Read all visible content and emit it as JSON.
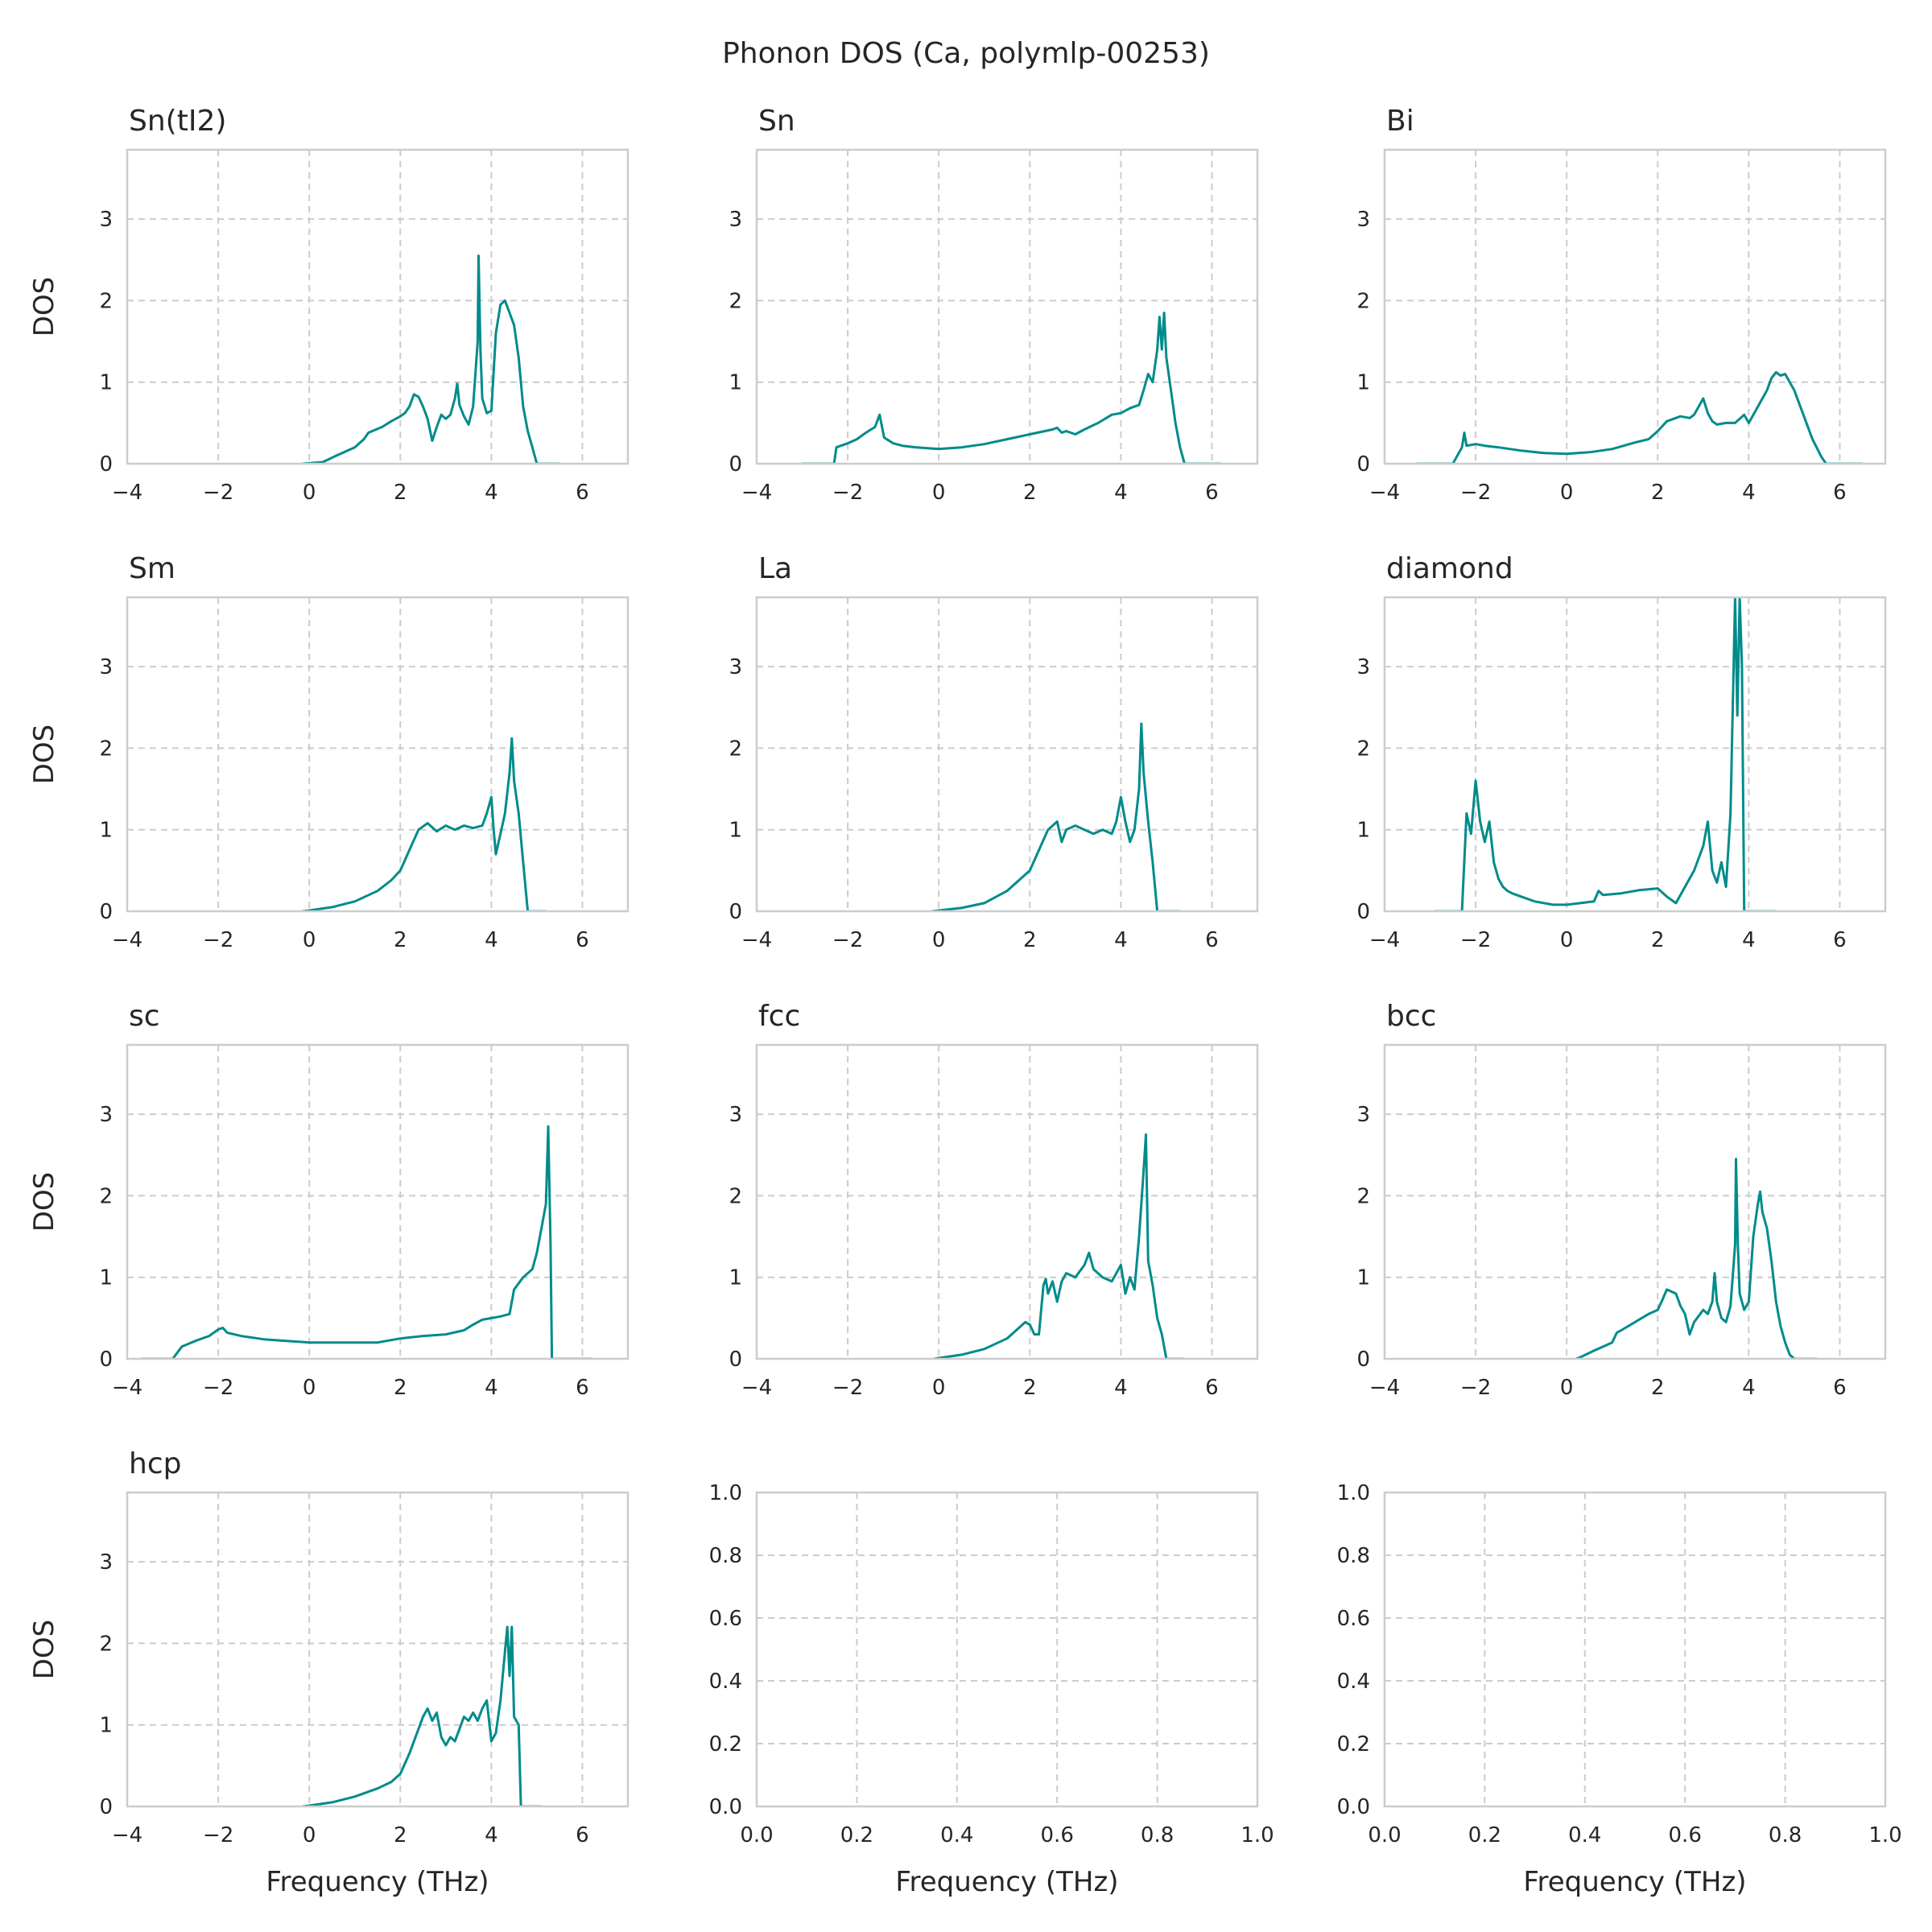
{
  "figure": {
    "title": "Phonon DOS (Ca, polymlp-00253)",
    "line_color": "#008b8b"
  },
  "chart_data": [
    {
      "type": "line",
      "title": "Sn(tI2)",
      "xlabel": "",
      "ylabel": "DOS",
      "xlim": [
        -4,
        7
      ],
      "ylim": [
        0,
        3.85
      ],
      "xticks": [
        "−4",
        "−2",
        "0",
        "2",
        "4",
        "6"
      ],
      "yticks": [
        "0",
        "1",
        "2",
        "3"
      ],
      "x": [
        -0.15,
        0.3,
        0.6,
        1.0,
        1.2,
        1.3,
        1.6,
        1.8,
        2.0,
        2.1,
        2.2,
        2.3,
        2.4,
        2.5,
        2.6,
        2.7,
        2.8,
        2.9,
        3.0,
        3.1,
        3.2,
        3.25,
        3.3,
        3.4,
        3.5,
        3.6,
        3.7,
        3.72,
        3.76,
        3.8,
        3.9,
        4.0,
        4.1,
        4.2,
        4.3,
        4.4,
        4.5,
        4.6,
        4.7,
        4.8,
        4.9,
        5.0,
        5.5
      ],
      "y": [
        0,
        0.02,
        0.1,
        0.2,
        0.3,
        0.38,
        0.45,
        0.52,
        0.58,
        0.62,
        0.7,
        0.85,
        0.82,
        0.7,
        0.55,
        0.28,
        0.45,
        0.6,
        0.55,
        0.6,
        0.8,
        0.98,
        0.72,
        0.58,
        0.48,
        0.7,
        1.5,
        2.55,
        1.4,
        0.8,
        0.62,
        0.65,
        1.6,
        1.95,
        2.0,
        1.85,
        1.7,
        1.3,
        0.7,
        0.4,
        0.2,
        0,
        0
      ]
    },
    {
      "type": "line",
      "title": "Sn",
      "xlabel": "",
      "ylabel": "",
      "xlim": [
        -4,
        7
      ],
      "ylim": [
        0,
        3.85
      ],
      "xticks": [
        "−4",
        "−2",
        "0",
        "2",
        "4",
        "6"
      ],
      "yticks": [
        "0",
        "1",
        "2",
        "3"
      ],
      "x": [
        -3.0,
        -2.3,
        -2.25,
        -2.0,
        -1.8,
        -1.6,
        -1.4,
        -1.3,
        -1.2,
        -1.0,
        -0.8,
        -0.5,
        0,
        0.5,
        1.0,
        1.5,
        2.0,
        2.5,
        2.6,
        2.7,
        2.8,
        3.0,
        3.2,
        3.5,
        3.8,
        4.0,
        4.2,
        4.4,
        4.5,
        4.6,
        4.7,
        4.8,
        4.85,
        4.9,
        4.95,
        5.0,
        5.1,
        5.2,
        5.3,
        5.4,
        6.2
      ],
      "y": [
        0,
        0,
        0.2,
        0.25,
        0.3,
        0.38,
        0.45,
        0.6,
        0.32,
        0.25,
        0.22,
        0.2,
        0.18,
        0.2,
        0.24,
        0.3,
        0.36,
        0.42,
        0.44,
        0.38,
        0.4,
        0.36,
        0.42,
        0.5,
        0.6,
        0.62,
        0.68,
        0.72,
        0.9,
        1.1,
        1.0,
        1.4,
        1.8,
        1.4,
        1.85,
        1.3,
        0.9,
        0.5,
        0.2,
        0,
        0
      ]
    },
    {
      "type": "line",
      "title": "Bi",
      "xlabel": "",
      "ylabel": "",
      "xlim": [
        -4,
        7
      ],
      "ylim": [
        0,
        3.85
      ],
      "xticks": [
        "−4",
        "−2",
        "0",
        "2",
        "4",
        "6"
      ],
      "yticks": [
        "0",
        "1",
        "2",
        "3"
      ],
      "x": [
        -3.3,
        -2.5,
        -2.3,
        -2.25,
        -2.2,
        -2.0,
        -1.8,
        -1.5,
        -1.0,
        -0.5,
        0,
        0.5,
        1.0,
        1.5,
        1.8,
        2.0,
        2.2,
        2.5,
        2.7,
        2.8,
        2.9,
        3.0,
        3.1,
        3.2,
        3.3,
        3.5,
        3.7,
        3.9,
        4.0,
        4.2,
        4.4,
        4.5,
        4.6,
        4.7,
        4.8,
        5.0,
        5.2,
        5.4,
        5.6,
        5.7,
        6.5
      ],
      "y": [
        0,
        0,
        0.2,
        0.38,
        0.22,
        0.24,
        0.22,
        0.2,
        0.16,
        0.13,
        0.12,
        0.14,
        0.18,
        0.26,
        0.3,
        0.4,
        0.52,
        0.58,
        0.56,
        0.6,
        0.7,
        0.8,
        0.62,
        0.52,
        0.48,
        0.5,
        0.5,
        0.6,
        0.5,
        0.7,
        0.9,
        1.05,
        1.12,
        1.08,
        1.1,
        0.9,
        0.6,
        0.3,
        0.08,
        0,
        0
      ]
    },
    {
      "type": "line",
      "title": "Sm",
      "xlabel": "",
      "ylabel": "DOS",
      "xlim": [
        -4,
        7
      ],
      "ylim": [
        0,
        3.85
      ],
      "xticks": [
        "−4",
        "−2",
        "0",
        "2",
        "4",
        "6"
      ],
      "yticks": [
        "0",
        "1",
        "2",
        "3"
      ],
      "x": [
        -0.15,
        0,
        0.5,
        1.0,
        1.5,
        1.8,
        2.0,
        2.2,
        2.4,
        2.6,
        2.8,
        3.0,
        3.2,
        3.4,
        3.6,
        3.8,
        3.9,
        4.0,
        4.05,
        4.1,
        4.2,
        4.3,
        4.4,
        4.45,
        4.5,
        4.6,
        4.7,
        4.8,
        5.2
      ],
      "y": [
        0,
        0.01,
        0.05,
        0.12,
        0.25,
        0.38,
        0.5,
        0.75,
        1.0,
        1.08,
        0.98,
        1.05,
        1.0,
        1.05,
        1.02,
        1.05,
        1.2,
        1.4,
        1.0,
        0.7,
        0.95,
        1.2,
        1.7,
        2.12,
        1.6,
        1.2,
        0.6,
        0,
        0
      ]
    },
    {
      "type": "line",
      "title": "La",
      "xlabel": "",
      "ylabel": "",
      "xlim": [
        -4,
        7
      ],
      "ylim": [
        0,
        3.85
      ],
      "xticks": [
        "−4",
        "−2",
        "0",
        "2",
        "4",
        "6"
      ],
      "yticks": [
        "0",
        "1",
        "2",
        "3"
      ],
      "x": [
        -0.15,
        0,
        0.5,
        1.0,
        1.5,
        2.0,
        2.2,
        2.4,
        2.6,
        2.7,
        2.8,
        3.0,
        3.2,
        3.4,
        3.6,
        3.8,
        3.9,
        4.0,
        4.1,
        4.2,
        4.3,
        4.4,
        4.45,
        4.5,
        4.6,
        4.7,
        4.8,
        5.3
      ],
      "y": [
        0,
        0.01,
        0.04,
        0.1,
        0.25,
        0.5,
        0.75,
        1.0,
        1.1,
        0.85,
        1.0,
        1.05,
        1.0,
        0.95,
        1.0,
        0.95,
        1.1,
        1.4,
        1.1,
        0.85,
        1.0,
        1.5,
        2.3,
        1.7,
        1.1,
        0.6,
        0,
        0
      ]
    },
    {
      "type": "line",
      "title": "diamond",
      "xlabel": "",
      "ylabel": "",
      "xlim": [
        -4,
        7
      ],
      "ylim": [
        0,
        3.85
      ],
      "xticks": [
        "−4",
        "−2",
        "0",
        "2",
        "4",
        "6"
      ],
      "yticks": [
        "0",
        "1",
        "2",
        "3"
      ],
      "x": [
        -2.9,
        -2.3,
        -2.2,
        -2.1,
        -2.0,
        -1.9,
        -1.8,
        -1.7,
        -1.6,
        -1.5,
        -1.4,
        -1.3,
        -1.2,
        -1.0,
        -0.7,
        -0.3,
        0,
        0.3,
        0.6,
        0.7,
        0.8,
        1.2,
        1.6,
        2.0,
        2.2,
        2.4,
        2.6,
        2.8,
        3.0,
        3.1,
        3.2,
        3.3,
        3.4,
        3.5,
        3.6,
        3.7,
        3.75,
        3.8,
        3.85,
        3.9,
        4.6
      ],
      "y": [
        0,
        0,
        1.2,
        0.95,
        1.6,
        1.1,
        0.85,
        1.1,
        0.6,
        0.4,
        0.3,
        0.25,
        0.22,
        0.18,
        0.12,
        0.08,
        0.08,
        0.1,
        0.12,
        0.25,
        0.2,
        0.22,
        0.26,
        0.28,
        0.18,
        0.1,
        0.3,
        0.5,
        0.8,
        1.1,
        0.5,
        0.35,
        0.6,
        0.3,
        1.2,
        3.85,
        2.4,
        3.85,
        3.0,
        0,
        0
      ]
    },
    {
      "type": "line",
      "title": "sc",
      "xlabel": "",
      "ylabel": "DOS",
      "xlim": [
        -4,
        7
      ],
      "ylim": [
        0,
        3.85
      ],
      "xticks": [
        "−4",
        "−2",
        "0",
        "2",
        "4",
        "6"
      ],
      "yticks": [
        "0",
        "1",
        "2",
        "3"
      ],
      "x": [
        -3.7,
        -3.0,
        -2.8,
        -2.5,
        -2.2,
        -2.0,
        -1.9,
        -1.8,
        -1.5,
        -1.0,
        -0.5,
        0,
        0.5,
        1.0,
        1.5,
        2.0,
        2.5,
        3.0,
        3.4,
        3.6,
        3.8,
        4.0,
        4.2,
        4.4,
        4.5,
        4.7,
        4.9,
        5.0,
        5.1,
        5.2,
        5.25,
        5.3,
        5.33,
        6.2
      ],
      "y": [
        0,
        0,
        0.15,
        0.22,
        0.28,
        0.36,
        0.38,
        0.32,
        0.28,
        0.24,
        0.22,
        0.2,
        0.2,
        0.2,
        0.2,
        0.25,
        0.28,
        0.3,
        0.35,
        0.42,
        0.48,
        0.5,
        0.52,
        0.55,
        0.85,
        1.0,
        1.1,
        1.3,
        1.6,
        1.9,
        2.85,
        1.4,
        0,
        0
      ]
    },
    {
      "type": "line",
      "title": "fcc",
      "xlabel": "",
      "ylabel": "",
      "xlim": [
        -4,
        7
      ],
      "ylim": [
        0,
        3.85
      ],
      "xticks": [
        "−4",
        "−2",
        "0",
        "2",
        "4",
        "6"
      ],
      "yticks": [
        "0",
        "1",
        "2",
        "3"
      ],
      "x": [
        -0.1,
        0,
        0.5,
        1.0,
        1.5,
        1.8,
        1.9,
        2.0,
        2.1,
        2.2,
        2.3,
        2.35,
        2.4,
        2.5,
        2.6,
        2.7,
        2.8,
        3.0,
        3.2,
        3.3,
        3.4,
        3.6,
        3.8,
        4.0,
        4.1,
        4.2,
        4.3,
        4.4,
        4.5,
        4.55,
        4.6,
        4.7,
        4.8,
        4.9,
        5.0,
        5.4
      ],
      "y": [
        0,
        0.01,
        0.05,
        0.12,
        0.25,
        0.4,
        0.45,
        0.42,
        0.3,
        0.3,
        0.9,
        0.98,
        0.8,
        0.95,
        0.7,
        0.95,
        1.05,
        1.0,
        1.15,
        1.3,
        1.1,
        1.0,
        0.95,
        1.15,
        0.8,
        1.0,
        0.85,
        1.5,
        2.3,
        2.75,
        1.2,
        0.9,
        0.5,
        0.3,
        0,
        0
      ]
    },
    {
      "type": "line",
      "title": "bcc",
      "xlabel": "",
      "ylabel": "",
      "xlim": [
        -4,
        7
      ],
      "ylim": [
        0,
        3.85
      ],
      "xticks": [
        "−4",
        "−2",
        "0",
        "2",
        "4",
        "6"
      ],
      "yticks": [
        "0",
        "1",
        "2",
        "3"
      ],
      "x": [
        0.2,
        0.3,
        0.6,
        1.0,
        1.1,
        1.2,
        1.5,
        1.8,
        2.0,
        2.1,
        2.2,
        2.4,
        2.5,
        2.6,
        2.7,
        2.8,
        3.0,
        3.1,
        3.2,
        3.25,
        3.3,
        3.4,
        3.5,
        3.6,
        3.7,
        3.72,
        3.76,
        3.8,
        3.9,
        4.0,
        4.1,
        4.2,
        4.25,
        4.3,
        4.4,
        4.5,
        4.6,
        4.7,
        4.8,
        4.9,
        5.0,
        5.5
      ],
      "y": [
        0,
        0.02,
        0.1,
        0.2,
        0.32,
        0.35,
        0.45,
        0.55,
        0.6,
        0.72,
        0.85,
        0.8,
        0.65,
        0.55,
        0.3,
        0.45,
        0.6,
        0.55,
        0.7,
        1.05,
        0.7,
        0.5,
        0.45,
        0.65,
        1.4,
        2.45,
        1.4,
        0.8,
        0.6,
        0.7,
        1.5,
        1.9,
        2.05,
        1.8,
        1.6,
        1.2,
        0.7,
        0.4,
        0.2,
        0.05,
        0,
        0
      ]
    },
    {
      "type": "line",
      "title": "hcp",
      "xlabel": "Frequency (THz)",
      "ylabel": "DOS",
      "xlim": [
        -4,
        7
      ],
      "ylim": [
        0,
        3.85
      ],
      "xticks": [
        "−4",
        "−2",
        "0",
        "2",
        "4",
        "6"
      ],
      "yticks": [
        "0",
        "1",
        "2",
        "3"
      ],
      "x": [
        -0.15,
        0,
        0.5,
        1.0,
        1.5,
        1.8,
        2.0,
        2.2,
        2.4,
        2.5,
        2.6,
        2.7,
        2.8,
        2.9,
        3.0,
        3.1,
        3.2,
        3.3,
        3.4,
        3.5,
        3.6,
        3.7,
        3.8,
        3.9,
        4.0,
        4.1,
        4.2,
        4.3,
        4.35,
        4.4,
        4.45,
        4.5,
        4.6,
        4.65,
        5.1
      ],
      "y": [
        0,
        0.01,
        0.05,
        0.12,
        0.22,
        0.3,
        0.4,
        0.65,
        0.95,
        1.1,
        1.2,
        1.05,
        1.15,
        0.85,
        0.75,
        0.85,
        0.8,
        0.95,
        1.1,
        1.05,
        1.15,
        1.05,
        1.2,
        1.3,
        0.8,
        0.9,
        1.3,
        1.9,
        2.2,
        1.6,
        2.2,
        1.1,
        1.0,
        0,
        0
      ]
    },
    {
      "type": "line",
      "title": "",
      "xlabel": "Frequency (THz)",
      "ylabel": "",
      "xlim": [
        0,
        1
      ],
      "ylim": [
        0,
        1
      ],
      "xticks": [
        "0.0",
        "0.2",
        "0.4",
        "0.6",
        "0.8",
        "1.0"
      ],
      "yticks": [
        "0.0",
        "0.2",
        "0.4",
        "0.6",
        "0.8",
        "1.0"
      ],
      "x": [],
      "y": []
    },
    {
      "type": "line",
      "title": "",
      "xlabel": "Frequency (THz)",
      "ylabel": "",
      "xlim": [
        0,
        1
      ],
      "ylim": [
        0,
        1
      ],
      "xticks": [
        "0.0",
        "0.2",
        "0.4",
        "0.6",
        "0.8",
        "1.0"
      ],
      "yticks": [
        "0.0",
        "0.2",
        "0.4",
        "0.6",
        "0.8",
        "1.0"
      ],
      "x": [],
      "y": []
    }
  ]
}
